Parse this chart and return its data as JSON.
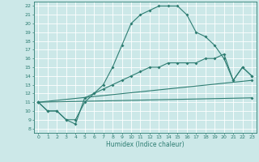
{
  "xlabel": "Humidex (Indice chaleur)",
  "bg_color": "#cce8e8",
  "line_color": "#2e7d72",
  "grid_color": "#ffffff",
  "xlim": [
    -0.5,
    23.5
  ],
  "ylim": [
    7.5,
    22.5
  ],
  "xticks": [
    0,
    1,
    2,
    3,
    4,
    5,
    6,
    7,
    8,
    9,
    10,
    11,
    12,
    13,
    14,
    15,
    16,
    17,
    18,
    19,
    20,
    21,
    22,
    23
  ],
  "yticks": [
    8,
    9,
    10,
    11,
    12,
    13,
    14,
    15,
    16,
    17,
    18,
    19,
    20,
    21,
    22
  ],
  "line1_x": [
    0,
    1,
    2,
    3,
    4,
    5,
    6,
    7,
    8,
    9,
    10,
    11,
    12,
    13,
    14,
    15,
    16,
    17,
    18,
    19,
    20,
    21,
    22,
    23
  ],
  "line1_y": [
    11,
    10,
    10,
    9,
    9,
    11,
    12,
    13,
    15,
    17.5,
    20,
    21,
    21.5,
    22,
    22,
    22,
    21,
    19,
    18.5,
    17.5,
    16,
    13.5,
    15,
    14
  ],
  "line2_x": [
    0,
    1,
    2,
    3,
    4,
    5,
    6,
    7,
    8,
    9,
    10,
    11,
    12,
    13,
    14,
    15,
    16,
    17,
    18,
    19,
    20,
    21,
    22,
    23
  ],
  "line2_y": [
    11,
    10,
    10,
    9,
    8.5,
    11.5,
    12,
    12.5,
    13,
    13.5,
    14,
    14.5,
    15,
    15,
    15.5,
    15.5,
    15.5,
    15.5,
    16,
    16,
    16.5,
    13.5,
    15,
    14
  ],
  "line3_x": [
    0,
    23
  ],
  "line3_y": [
    11,
    13.5
  ],
  "line4_x": [
    0,
    23
  ],
  "line4_y": [
    11,
    11.5
  ],
  "marker_size": 2.0,
  "line_width": 0.8
}
